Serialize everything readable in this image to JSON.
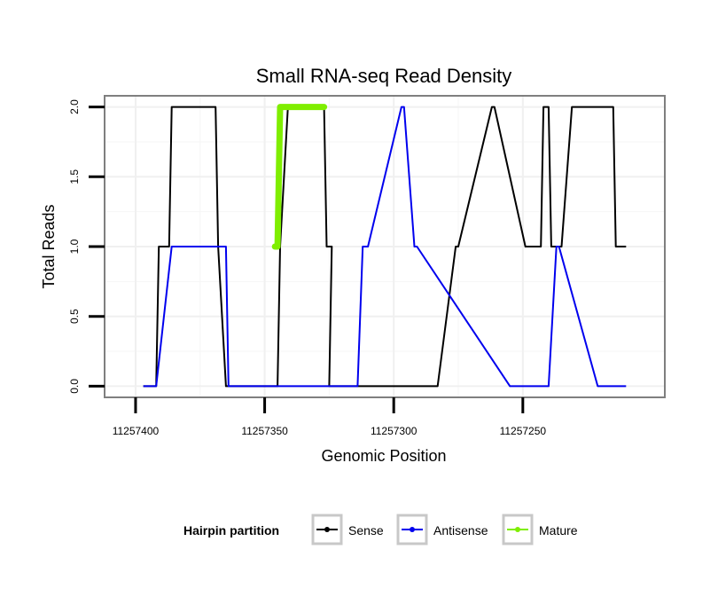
{
  "chart_data": {
    "type": "line",
    "title": "Small RNA-seq Read Density",
    "xlabel": "Genomic Position",
    "ylabel": "Total Reads",
    "xlim": [
      11257412,
      11257195
    ],
    "ylim": [
      -0.08,
      2.08
    ],
    "x_reversed": true,
    "grid": true,
    "x_ticks": [
      11257400,
      11257350,
      11257300,
      11257250
    ],
    "x_tick_labels": [
      "11257400",
      "11257350",
      "11257300",
      "11257250"
    ],
    "y_ticks": [
      0.0,
      0.5,
      1.0,
      1.5,
      2.0
    ],
    "y_tick_labels": [
      "0.0",
      "0.5",
      "1.0",
      "1.5",
      "2.0"
    ],
    "legend": {
      "title": "Hairpin partition",
      "position": "bottom",
      "entries": [
        "Sense",
        "Antisense",
        "Mature"
      ]
    },
    "series": [
      {
        "name": "Sense",
        "color": "#000000",
        "x": [
          11257397,
          11257392,
          11257391,
          11257388,
          11257387,
          11257386,
          11257369,
          11257368,
          11257365,
          11257364,
          11257346,
          11257345,
          11257344,
          11257341,
          11257327,
          11257326,
          11257324,
          11257325,
          11257300,
          11257284,
          11257283,
          11257276,
          11257275,
          11257262,
          11257261,
          11257249,
          11257248,
          11257243,
          11257242,
          11257240,
          11257239,
          11257236,
          11257235,
          11257231,
          11257230,
          11257215,
          11257214,
          11257210
        ],
        "values": [
          0,
          0,
          1,
          1,
          1,
          2,
          2,
          1,
          0,
          0,
          0,
          0,
          1,
          2,
          2,
          1,
          1,
          0,
          0,
          0,
          0,
          1,
          1,
          2,
          2,
          1,
          1,
          1,
          2,
          2,
          1,
          1,
          1,
          2,
          2,
          2,
          1,
          1
        ]
      },
      {
        "name": "Antisense",
        "color": "#0000ee",
        "x": [
          11257397,
          11257392,
          11257386,
          11257366,
          11257365,
          11257364,
          11257346,
          11257323,
          11257322,
          11257314,
          11257312,
          11257310,
          11257297,
          11257296,
          11257292,
          11257291,
          11257255,
          11257252,
          11257251,
          11257240,
          11257237,
          11257236,
          11257221,
          11257210
        ],
        "values": [
          0,
          0,
          1,
          1,
          1,
          0,
          0,
          0,
          0,
          0,
          1,
          1,
          2,
          2,
          1,
          1,
          0,
          0,
          0,
          0,
          1,
          1,
          0,
          0
        ]
      },
      {
        "name": "Mature",
        "color": "#7fee00",
        "x": [
          11257346,
          11257345,
          11257344,
          11257327
        ],
        "values": [
          1,
          1,
          2,
          2
        ]
      }
    ]
  }
}
